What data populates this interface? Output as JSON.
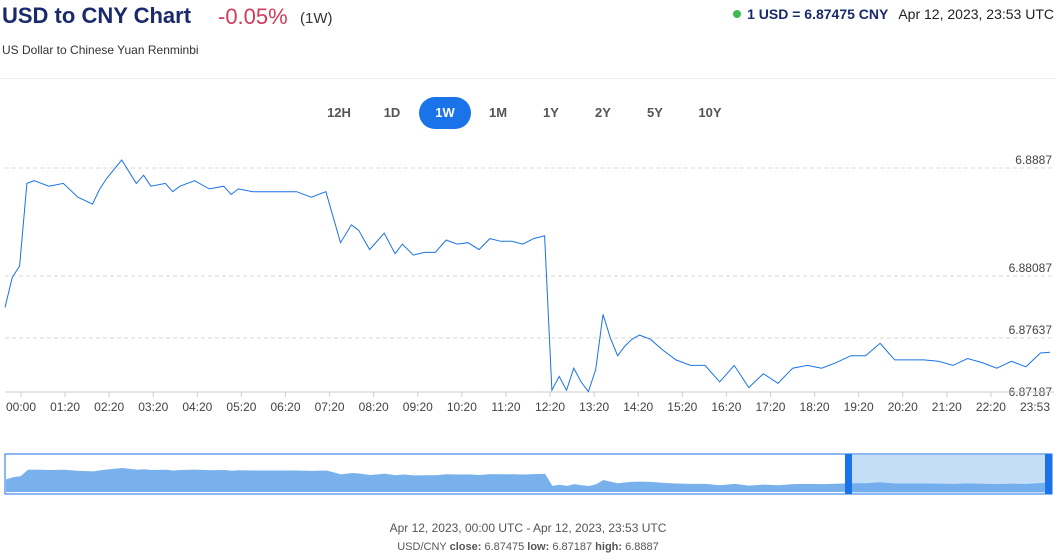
{
  "header": {
    "title": "USD to CNY Chart",
    "change": "-0.05%",
    "period": "(1W)",
    "subtitle": "US Dollar to Chinese Yuan Renminbi",
    "rate": "1 USD = 6.87475 CNY",
    "timestamp": "Apr 12, 2023, 23:53 UTC",
    "live_color": "#3cba54"
  },
  "ranges": [
    {
      "label": "12H",
      "active": false
    },
    {
      "label": "1D",
      "active": false
    },
    {
      "label": "1W",
      "active": true
    },
    {
      "label": "1M",
      "active": false
    },
    {
      "label": "1Y",
      "active": false
    },
    {
      "label": "2Y",
      "active": false
    },
    {
      "label": "5Y",
      "active": false
    },
    {
      "label": "10Y",
      "active": false
    }
  ],
  "chart_data": {
    "type": "line",
    "title": "",
    "xlabel": "",
    "ylabel": "",
    "ylim": [
      6.87187,
      6.8887
    ],
    "yticks": [
      "6.8887",
      "6.88087",
      "6.87637",
      "6.87187"
    ],
    "xticks": [
      "00:00",
      "01:20",
      "02:20",
      "03:20",
      "04:20",
      "05:20",
      "06:20",
      "07:20",
      "08:20",
      "09:20",
      "10:20",
      "11:20",
      "12:20",
      "13:20",
      "14:20",
      "15:20",
      "16:20",
      "17:20",
      "18:20",
      "19:20",
      "20:20",
      "21:20",
      "22:20",
      "23:53"
    ],
    "grid": true,
    "line_color": "#1a73e8",
    "series": [
      {
        "x": [
          "00:00",
          "00:10",
          "00:20",
          "00:30",
          "00:40",
          "01:00",
          "01:20",
          "01:40",
          "02:00",
          "02:10",
          "02:20",
          "02:40",
          "03:00",
          "03:10",
          "03:20",
          "03:40",
          "03:50",
          "04:00",
          "04:20",
          "04:40",
          "05:00",
          "05:10",
          "05:20",
          "05:40",
          "06:00",
          "06:20",
          "06:40",
          "07:00",
          "07:20",
          "07:40",
          "07:55",
          "08:05",
          "08:20",
          "08:40",
          "08:55",
          "09:05",
          "09:20",
          "09:35",
          "09:50",
          "10:05",
          "10:20",
          "10:35",
          "10:50",
          "11:05",
          "11:20",
          "11:35",
          "11:50",
          "12:05",
          "12:20",
          "12:30",
          "12:40",
          "12:50",
          "13:00",
          "13:10",
          "13:20",
          "13:30",
          "13:40",
          "13:50",
          "14:00",
          "14:10",
          "14:20",
          "14:30",
          "14:45",
          "15:00",
          "15:20",
          "15:40",
          "16:00",
          "16:20",
          "16:40",
          "17:00",
          "17:20",
          "17:40",
          "18:00",
          "18:20",
          "18:40",
          "19:00",
          "19:20",
          "19:40",
          "20:00",
          "20:20",
          "20:40",
          "21:00",
          "21:20",
          "21:40",
          "22:00",
          "22:20",
          "22:40",
          "23:00",
          "23:20",
          "23:40",
          "23:53"
        ],
        "values": [
          6.878,
          6.8802,
          6.881,
          6.887,
          6.8872,
          6.8868,
          6.887,
          6.886,
          6.8855,
          6.8866,
          6.8874,
          6.8887,
          6.887,
          6.8876,
          6.8868,
          6.887,
          6.8864,
          6.8868,
          6.8872,
          6.8866,
          6.8868,
          6.8862,
          6.8866,
          6.8864,
          6.8864,
          6.8864,
          6.8864,
          6.886,
          6.8864,
          6.8827,
          6.884,
          6.8836,
          6.8822,
          6.8834,
          6.8819,
          6.8826,
          6.8818,
          6.882,
          6.882,
          6.8829,
          6.8826,
          6.8827,
          6.8822,
          6.883,
          6.8828,
          6.8828,
          6.8826,
          6.883,
          6.8832,
          6.872,
          6.873,
          6.872,
          6.8736,
          6.8726,
          6.8719,
          6.8735,
          6.8775,
          6.8758,
          6.8745,
          6.8752,
          6.8757,
          6.876,
          6.8757,
          6.875,
          6.8742,
          6.8738,
          6.8738,
          6.8726,
          6.8738,
          6.8722,
          6.8732,
          6.8725,
          6.8736,
          6.8738,
          6.8736,
          6.874,
          6.8745,
          6.8745,
          6.8754,
          6.8742,
          6.8742,
          6.8742,
          6.8741,
          6.8738,
          6.8743,
          6.874,
          6.8736,
          6.8741,
          6.8737,
          6.8747,
          6.87475
        ]
      }
    ]
  },
  "navigator": {
    "fill_color": "#6aa8ea",
    "selection_color": "#c5def8",
    "handle_color": "#1a73e8"
  },
  "footer": {
    "range": "Apr 12, 2023, 00:00 UTC - Apr 12, 2023, 23:53 UTC",
    "pair": "USD/CNY",
    "close_label": "close:",
    "close_value": "6.87475",
    "low_label": "low:",
    "low_value": "6.87187",
    "high_label": "high:",
    "high_value": "6.8887"
  }
}
